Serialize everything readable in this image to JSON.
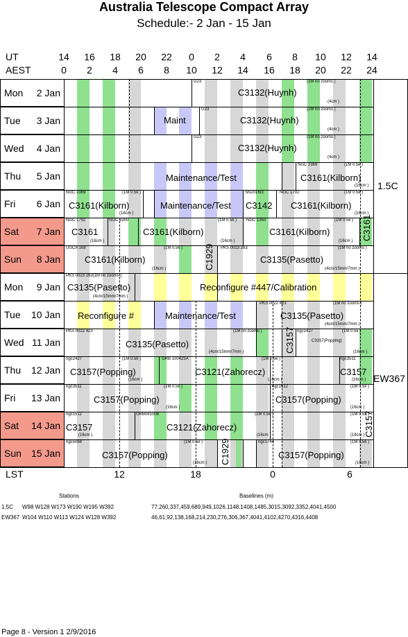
{
  "title": "Australia Telescope Compact Array",
  "subtitle": "Schedule:- 2  Jan - 15 Jan",
  "axes": {
    "ut_label": "UT",
    "aest_label": "AEST",
    "lst_label": "LST",
    "ut_ticks": [
      "14",
      "16",
      "18",
      "20",
      "22",
      "0",
      "2",
      "4",
      "6",
      "8",
      "10",
      "12",
      "14"
    ],
    "aest_ticks": [
      "0",
      "2",
      "4",
      "6",
      "8",
      "10",
      "12",
      "14",
      "16",
      "18",
      "20",
      "22",
      "24"
    ],
    "lst_ticks": [
      "12",
      "18",
      "0",
      "6"
    ]
  },
  "days": [
    {
      "name": "Mon",
      "date": "2  Jan",
      "weekend": false
    },
    {
      "name": "Tue",
      "date": "3  Jan",
      "weekend": false
    },
    {
      "name": "Wed",
      "date": "4  Jan",
      "weekend": false
    },
    {
      "name": "Thu",
      "date": "5  Jan",
      "weekend": false
    },
    {
      "name": "Fri",
      "date": "6  Jan",
      "weekend": false
    },
    {
      "name": "Sat",
      "date": "7  Jan",
      "weekend": true
    },
    {
      "name": "Sun",
      "date": "8  Jan",
      "weekend": true
    },
    {
      "name": "Mon",
      "date": "9  Jan",
      "weekend": false
    },
    {
      "name": "Tue",
      "date": "10  Jan",
      "weekend": false
    },
    {
      "name": "Wed",
      "date": "11  Jan",
      "weekend": false
    },
    {
      "name": "Thu",
      "date": "12  Jan",
      "weekend": false
    },
    {
      "name": "Fri",
      "date": "13  Jan",
      "weekend": false
    },
    {
      "name": "Sat",
      "date": "14  Jan",
      "weekend": true
    },
    {
      "name": "Sun",
      "date": "15  Jan",
      "weekend": true
    }
  ],
  "configs": [
    "1.5C",
    "EW367"
  ],
  "labels": {
    "c3132": "C3132(Huynh)",
    "maint": "Maint",
    "maint_test": "Maintenance/Test",
    "c3161": "C3161(Kilborn)",
    "c3142": "C3142",
    "c3161_short": "C3161",
    "c3135": "C3135(Pasetto)",
    "c1929": "C1929",
    "reconfig_cal": "Reconfigure #447/Calibration",
    "reconfig": "Reconfigure #",
    "c3157": "C3157(Popping)",
    "c3157_short": "C3157",
    "c3121": "C3121(Zahorecz)",
    "g23": "G23",
    "ngc2369": "NGC 2369",
    "ngc1792": "NGC 1792",
    "ngc6300": "NGC 6300",
    "ngc1350": "NGC 1350",
    "sn2016cc": "SN2016cc",
    "ugca168": "UGCA 168",
    "pks0023": "PKS 0023 263",
    "pks0023m": "PKS 0023 263(1M no zooms )",
    "pks0022": "PKS 0022 423",
    "ngc2427": "ngc2427",
    "ngc3511": "ngc3511",
    "ngc1512": "ngc1512",
    "ngc5068": "ngc5068",
    "ngc1744": "ngc1744",
    "grb100425": "GRB 100425A",
    "grb081008": "GRB081008",
    "m_nozoom": "(1M no zooms )",
    "m_05k": "(1M 0.5k )",
    "cm4": "(4cm )",
    "cm16": "(16cm )",
    "cm15": "(15cm )",
    "cm4_15": "(4cm/15mm/7mm )"
  },
  "footer": {
    "stations_heading": "Stations",
    "baselines_heading": "Baselines (m)",
    "rows": [
      {
        "config": "1.5C",
        "stations": "W98 W128 W173 W190 W195 W392",
        "baselines": "77,260,337,459,689,949,1026,1148,1408,1485,3015,3092,3352,4041,4500"
      },
      {
        "config": "EW367",
        "stations": "W104 W110 W113 W124 W128 W392",
        "baselines": "46,61,92,138,168,214,230,276,306,367,4041,4102,4270,4316,4408"
      }
    ],
    "page": "Page 8 - Version 1  2/9/2016"
  }
}
